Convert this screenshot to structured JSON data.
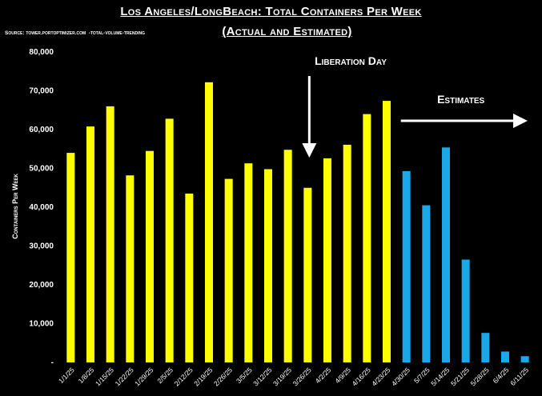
{
  "chart_data": {
    "type": "bar",
    "title": "Los Angeles/LongBeach: Total Containers Per Week",
    "subtitle": "(Actual and Estimated)",
    "source": "Source: tower.portoptimizer.com  -total-volume-trending",
    "xlabel": "",
    "ylabel": "Containers Per Week",
    "ylim": [
      0,
      80000
    ],
    "yticks": [
      0,
      10000,
      20000,
      30000,
      40000,
      50000,
      60000,
      70000,
      80000
    ],
    "ytick_labels": [
      "-",
      "10,000",
      "20,000",
      "30,000",
      "40,000",
      "50,000",
      "60,000",
      "70,000",
      "80,000"
    ],
    "categories": [
      "1/1/25",
      "1/8/25",
      "1/15/25",
      "1/22/25",
      "1/29/25",
      "2/5/25",
      "2/12/25",
      "2/19/25",
      "2/26/25",
      "3/5/25",
      "3/12/25",
      "3/19/25",
      "3/26/25",
      "4/2/25",
      "4/9/25",
      "4/16/25",
      "4/23/25",
      "4/30/25",
      "5/7/25",
      "5/14/25",
      "5/21/25",
      "5/28/25",
      "6/4/25",
      "6/11/25"
    ],
    "series": [
      {
        "name": "Actual",
        "color": "#ffff00",
        "values": [
          54000,
          60800,
          66000,
          48200,
          54500,
          62800,
          43500,
          72200,
          47300,
          51300,
          49800,
          54800,
          45000,
          52600,
          56100,
          64000,
          67400,
          null,
          null,
          null,
          null,
          null,
          null,
          null
        ]
      },
      {
        "name": "Estimated",
        "color": "#1ba8e8",
        "values": [
          null,
          null,
          null,
          null,
          null,
          null,
          null,
          null,
          null,
          null,
          null,
          null,
          null,
          null,
          null,
          null,
          null,
          49300,
          40500,
          55400,
          26500,
          7600,
          2800,
          1600
        ]
      }
    ],
    "annotations": [
      {
        "text": "Liberation Day",
        "category": "3/26/25",
        "arrow": "down"
      },
      {
        "text": "Estimates",
        "category": "4/30/25",
        "arrow": "right"
      }
    ]
  }
}
